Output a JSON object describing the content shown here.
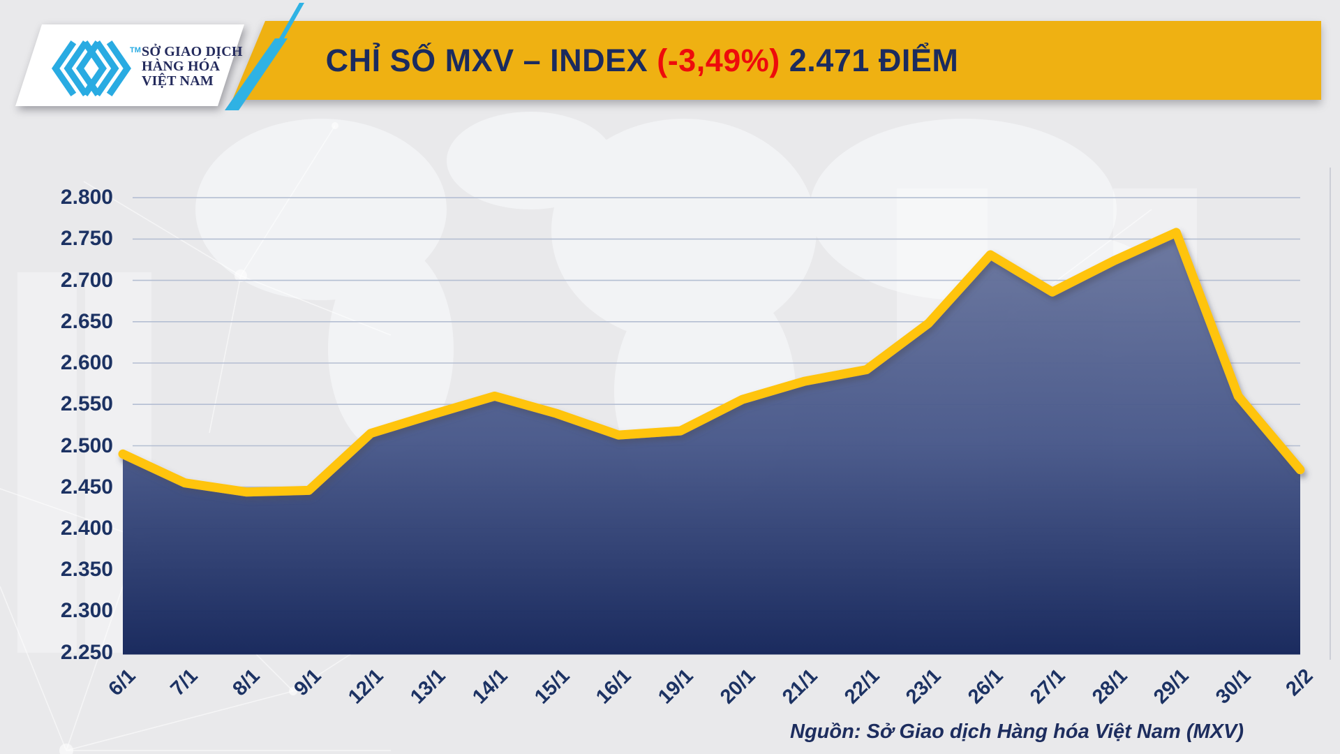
{
  "header": {
    "logo": {
      "line1": "SỞ GIAO DỊCH",
      "line2": "HÀNG HÓA",
      "line3": "VIỆT NAM",
      "tm": "TM"
    },
    "title_prefix": "CHỈ SỐ MXV – INDEX ",
    "title_change": "(-3,49%)",
    "title_suffix": " 2.471 ĐIỂM"
  },
  "chart_data": {
    "type": "area",
    "title": "CHỈ SỐ MXV – INDEX (-3,49%) 2.471 ĐIỂM",
    "categories": [
      "6/1",
      "7/1",
      "8/1",
      "9/1",
      "12/1",
      "13/1",
      "14/1",
      "15/1",
      "16/1",
      "19/1",
      "20/1",
      "21/1",
      "22/1",
      "23/1",
      "26/1",
      "27/1",
      "28/1",
      "29/1",
      "30/1",
      "2/2"
    ],
    "values": [
      2490,
      2455,
      2444,
      2446,
      2515,
      2538,
      2560,
      2539,
      2513,
      2518,
      2556,
      2578,
      2592,
      2648,
      2731,
      2686,
      2724,
      2758,
      2560,
      2471
    ],
    "last_value_label": "2.471",
    "change_percent": "-3,49%",
    "ylim": [
      2250,
      2800
    ],
    "ytick_step": 50,
    "ytick_labels": [
      "2.800",
      "2.750",
      "2.700",
      "2.650",
      "2.600",
      "2.550",
      "2.500",
      "2.450",
      "2.400",
      "2.350",
      "2.300",
      "2.250"
    ],
    "grid": true,
    "legend": "none",
    "colors": {
      "line": "#ffc40d",
      "fill_top": "#6a769e",
      "fill_mid": "#48588a",
      "fill_bottom": "#14255a",
      "grid": "#b4bed2",
      "axis_text": "#1c3263",
      "banner": "#efb112",
      "accent_cyan": "#29abe2",
      "title_navy": "#1b2b5e",
      "title_red": "#ee0b0b"
    }
  },
  "footer": {
    "source": "Nguồn: Sở Giao dịch Hàng hóa Việt Nam (MXV)"
  }
}
